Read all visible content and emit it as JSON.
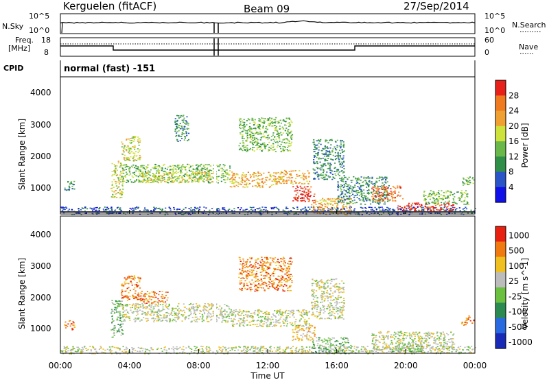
{
  "header": {
    "station": "Kerguelen (fitACF)",
    "beam": "Beam 09",
    "date": "27/Sep/2014"
  },
  "left_labels": {
    "nsky": "N.Sky",
    "freq_line1": "Freq.",
    "freq_line2": "[MHz]",
    "cpid": "CPID"
  },
  "right_labels": {
    "nsearch": "N.Search",
    "nave": "Nave"
  },
  "nsky_panel": {
    "left_ticks": [
      "10^5",
      "10^0"
    ],
    "right_ticks": [
      "10^5",
      "10^0"
    ]
  },
  "freq_panel": {
    "left_ticks": [
      "18",
      "8"
    ],
    "right_ticks": [
      "60",
      "0"
    ]
  },
  "cpid_text": "normal (fast) -151",
  "x_axis": {
    "label": "Time UT",
    "ticks": [
      "00:00",
      "04:00",
      "08:00",
      "12:00",
      "16:00",
      "20:00",
      "00:00"
    ]
  },
  "chart_data": [
    {
      "type": "heatmap",
      "quantity": "Power",
      "colorbar_label": "Power [dB]",
      "colorbar_ticks": [
        "28",
        "24",
        "20",
        "16",
        "12",
        "8",
        "4"
      ],
      "colorscale": [
        "#1010e8",
        "#2a55c8",
        "#2f8f48",
        "#6ab84a",
        "#cde23a",
        "#f0a030",
        "#f07a20",
        "#e8201a"
      ],
      "ylabel": "Slant Range [km]",
      "y_ticks": [
        "1000",
        "2000",
        "3000",
        "4000"
      ],
      "ylim": [
        180,
        4600
      ],
      "xlim_hours": [
        0,
        24
      ],
      "echo_regions": [
        {
          "t": [
            0.0,
            24.0
          ],
          "r": [
            180,
            420
          ],
          "level": 1
        },
        {
          "t": [
            0.2,
            0.8
          ],
          "r": [
            950,
            1250
          ],
          "level": 2
        },
        {
          "t": [
            2.9,
            3.6
          ],
          "r": [
            700,
            1900
          ],
          "level": 4
        },
        {
          "t": [
            3.5,
            4.6
          ],
          "r": [
            1900,
            2700
          ],
          "level": 4
        },
        {
          "t": [
            3.5,
            9.8
          ],
          "r": [
            1200,
            1800
          ],
          "level": 3
        },
        {
          "t": [
            4.6,
            8.8
          ],
          "r": [
            1200,
            1550
          ],
          "level": 4
        },
        {
          "t": [
            6.6,
            7.4
          ],
          "r": [
            2500,
            3400
          ],
          "level": 2
        },
        {
          "t": [
            9.8,
            12.5
          ],
          "r": [
            1050,
            1550
          ],
          "level": 5
        },
        {
          "t": [
            10.3,
            13.4
          ],
          "r": [
            2200,
            3300
          ],
          "level": 3
        },
        {
          "t": [
            12.5,
            14.4
          ],
          "r": [
            1150,
            1600
          ],
          "level": 5
        },
        {
          "t": [
            13.4,
            14.7
          ],
          "r": [
            600,
            1100
          ],
          "level": 7
        },
        {
          "t": [
            14.5,
            16.8
          ],
          "r": [
            180,
            700
          ],
          "level": 5
        },
        {
          "t": [
            14.6,
            16.4
          ],
          "r": [
            1300,
            2600
          ],
          "level": 2
        },
        {
          "t": [
            16.0,
            19.0
          ],
          "r": [
            500,
            1400
          ],
          "level": 2
        },
        {
          "t": [
            18.0,
            19.8
          ],
          "r": [
            600,
            1100
          ],
          "level": 6
        },
        {
          "t": [
            19.5,
            22.8
          ],
          "r": [
            280,
            550
          ],
          "level": 7
        },
        {
          "t": [
            21.0,
            23.6
          ],
          "r": [
            500,
            950
          ],
          "level": 3
        },
        {
          "t": [
            23.2,
            23.9
          ],
          "r": [
            1100,
            1400
          ],
          "level": 3
        }
      ]
    },
    {
      "type": "heatmap",
      "quantity": "Velocity",
      "colorbar_label": "Velocity [m s^-1]",
      "colorbar_ticks": [
        "1000",
        "500",
        "100",
        "25",
        "-25",
        "-100",
        "-500",
        "-1000"
      ],
      "colorscale": [
        "#1a2ab8",
        "#2a6ae0",
        "#2a8a50",
        "#6cc040",
        "#bcbcbc",
        "#f0c020",
        "#f07a10",
        "#e82010"
      ],
      "ylabel": "Slant Range [km]",
      "y_ticks": [
        "1000",
        "2000",
        "3000",
        "4000"
      ],
      "ylim": [
        180,
        4600
      ],
      "xlim_hours": [
        0,
        24
      ],
      "echo_regions": [
        {
          "t": [
            0.0,
            24.0
          ],
          "r": [
            180,
            420
          ],
          "level": 4
        },
        {
          "t": [
            0.2,
            0.8
          ],
          "r": [
            950,
            1250
          ],
          "level": 6
        },
        {
          "t": [
            2.9,
            3.6
          ],
          "r": [
            700,
            1900
          ],
          "level": 3
        },
        {
          "t": [
            3.5,
            4.6
          ],
          "r": [
            1900,
            2700
          ],
          "level": 6
        },
        {
          "t": [
            4.6,
            6.2
          ],
          "r": [
            1800,
            2200
          ],
          "level": 6
        },
        {
          "t": [
            3.5,
            9.8
          ],
          "r": [
            1200,
            1800
          ],
          "level": 4
        },
        {
          "t": [
            9.8,
            14.4
          ],
          "r": [
            1050,
            1600
          ],
          "level": 4
        },
        {
          "t": [
            10.3,
            13.4
          ],
          "r": [
            2200,
            3300
          ],
          "level": 6
        },
        {
          "t": [
            14.5,
            16.4
          ],
          "r": [
            1300,
            2600
          ],
          "level": 4
        },
        {
          "t": [
            13.4,
            14.7
          ],
          "r": [
            600,
            1100
          ],
          "level": 5
        },
        {
          "t": [
            14.5,
            16.8
          ],
          "r": [
            180,
            700
          ],
          "level": 3
        },
        {
          "t": [
            18.0,
            22.8
          ],
          "r": [
            300,
            900
          ],
          "level": 4
        },
        {
          "t": [
            19.2,
            21.0
          ],
          "r": [
            250,
            500
          ],
          "level": 3
        },
        {
          "t": [
            23.2,
            23.9
          ],
          "r": [
            1100,
            1400
          ],
          "level": 6
        }
      ]
    }
  ]
}
